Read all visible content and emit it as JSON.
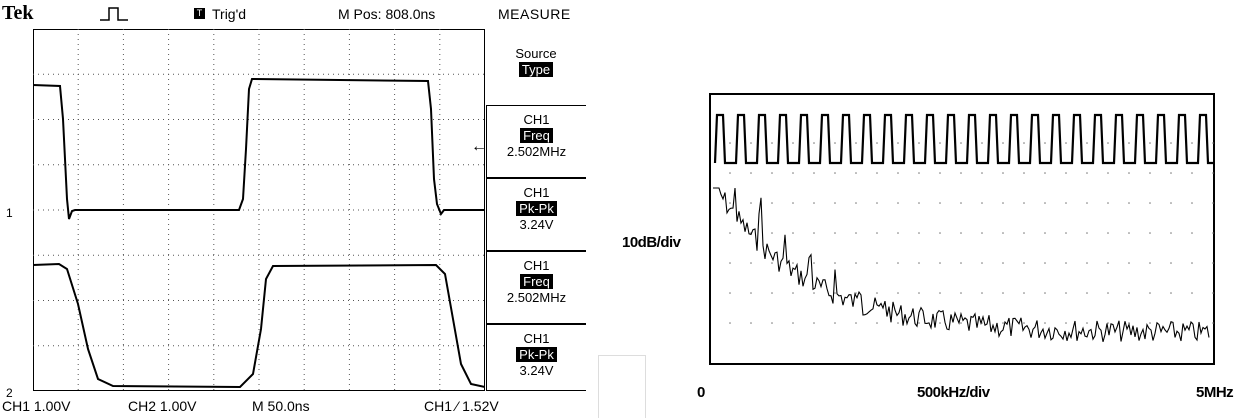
{
  "scope": {
    "brand": "Tek",
    "trigger_status": "Trig'd",
    "trigger_icon": "T",
    "m_pos": "M Pos: 808.0ns",
    "menu_title": "MEASURE",
    "menu": [
      {
        "line1": "Source",
        "line2": "Type",
        "value": ""
      },
      {
        "line1": "CH1",
        "line2": "Freq",
        "value": "2.502MHz"
      },
      {
        "line1": "CH1",
        "line2": "Pk-Pk",
        "value": "3.24V"
      },
      {
        "line1": "CH1",
        "line2": "Freq",
        "value": "2.502MHz"
      },
      {
        "line1": "CH1",
        "line2": "Pk-Pk",
        "value": "3.24V"
      }
    ],
    "footer": {
      "ch1": "CH1  1.00V",
      "ch2": "CH2  1.00V",
      "timebase": "M 50.0ns",
      "trigger": "CH1 ⁄ 1.52V"
    },
    "ch1_marker": "1",
    "ch2_marker": "2"
  },
  "spectrum": {
    "y_label": "10dB/div",
    "x_start": "0",
    "x_mid": "500kHz/div",
    "x_end": "5MHz"
  },
  "colors": {
    "trace": "#000000",
    "grid": "#555555",
    "menu_bg": "#ffffff"
  },
  "icons": [
    "pulse-icon",
    "trigger-icon",
    "trigger-level-arrow-icon"
  ]
}
